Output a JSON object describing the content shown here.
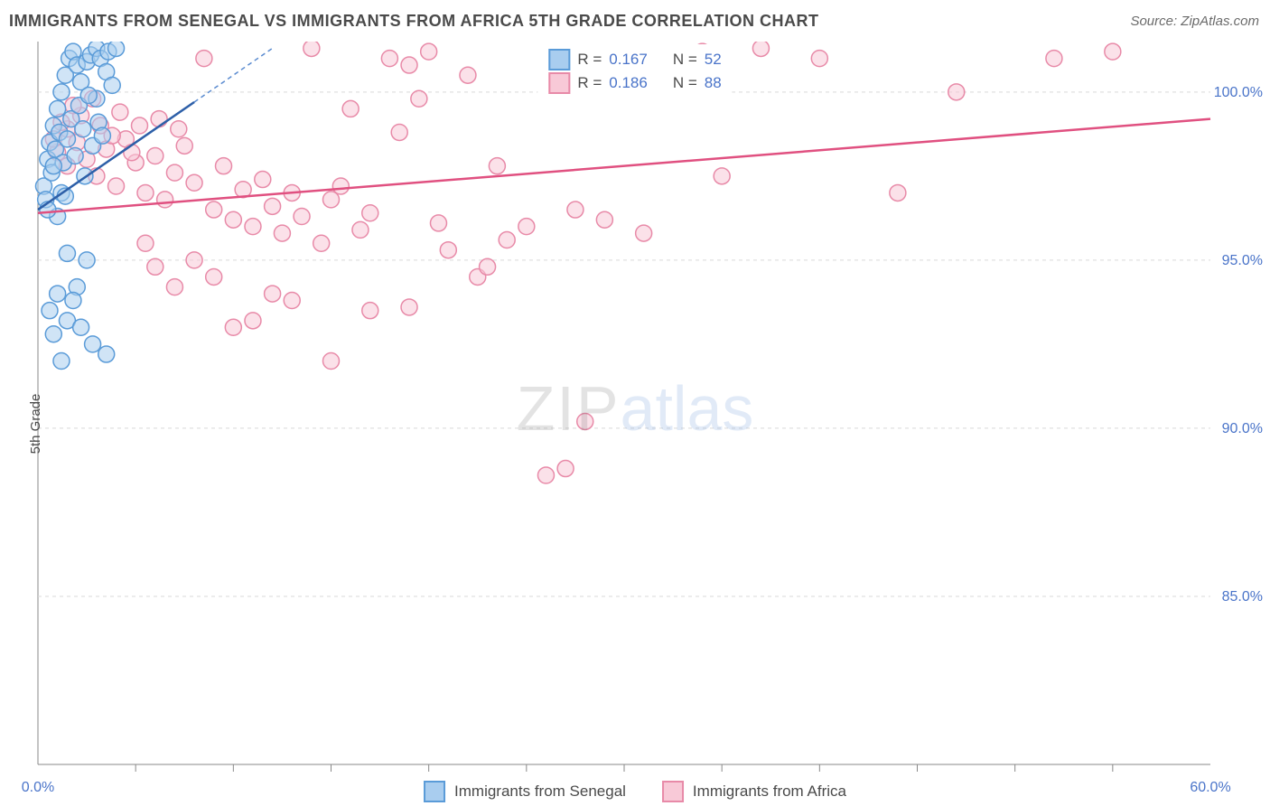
{
  "header": {
    "title": "IMMIGRANTS FROM SENEGAL VS IMMIGRANTS FROM AFRICA 5TH GRADE CORRELATION CHART",
    "source_label": "Source: ZipAtlas.com"
  },
  "chart": {
    "type": "scatter",
    "ylabel": "5th Grade",
    "background_color": "#ffffff",
    "grid_color": "#d9d9d9",
    "axis_color": "#888888",
    "tick_color": "#888888",
    "label_color": "#4a74c9",
    "xlim": [
      0,
      60
    ],
    "ylim": [
      80,
      101.5
    ],
    "xtick_major": [
      0,
      60
    ],
    "xtick_major_labels": [
      "0.0%",
      "60.0%"
    ],
    "xtick_minor": [
      5,
      10,
      15,
      20,
      25,
      30,
      35,
      40,
      45,
      50,
      55
    ],
    "ytick_major": [
      85,
      90,
      95,
      100
    ],
    "ytick_labels": [
      "85.0%",
      "90.0%",
      "95.0%",
      "100.0%"
    ],
    "marker_radius": 9,
    "marker_stroke_width": 1.5,
    "series": [
      {
        "name": "Immigrants from Senegal",
        "fill": "#a9cdef",
        "stroke": "#5a9bd8",
        "fill_opacity": 0.55,
        "trend": {
          "x1": 0,
          "y1": 96.5,
          "x2": 8,
          "y2": 99.7,
          "color": "#2d5fa8",
          "width": 2.5
        },
        "trend_dashed": {
          "x1": 8,
          "y1": 99.7,
          "x2": 12,
          "y2": 101.3,
          "color": "#5a8bd0",
          "width": 1.5,
          "dash": "5,4"
        },
        "R": "0.167",
        "N": "52",
        "points": [
          [
            0.3,
            97.2
          ],
          [
            0.5,
            98.0
          ],
          [
            0.6,
            98.5
          ],
          [
            0.8,
            99.0
          ],
          [
            1.0,
            99.5
          ],
          [
            1.2,
            100.0
          ],
          [
            1.4,
            100.5
          ],
          [
            1.6,
            101.0
          ],
          [
            1.8,
            101.2
          ],
          [
            2.0,
            100.8
          ],
          [
            2.2,
            100.3
          ],
          [
            2.5,
            100.9
          ],
          [
            2.7,
            101.1
          ],
          [
            3.0,
            101.3
          ],
          [
            3.0,
            99.8
          ],
          [
            3.2,
            101.0
          ],
          [
            3.5,
            100.6
          ],
          [
            3.6,
            101.2
          ],
          [
            3.8,
            100.2
          ],
          [
            4.0,
            101.3
          ],
          [
            0.4,
            96.8
          ],
          [
            0.7,
            97.6
          ],
          [
            0.9,
            98.3
          ],
          [
            1.1,
            98.8
          ],
          [
            1.3,
            97.9
          ],
          [
            1.5,
            98.6
          ],
          [
            1.7,
            99.2
          ],
          [
            1.9,
            98.1
          ],
          [
            2.1,
            99.6
          ],
          [
            2.3,
            98.9
          ],
          [
            2.4,
            97.5
          ],
          [
            2.6,
            99.9
          ],
          [
            2.8,
            98.4
          ],
          [
            3.1,
            99.1
          ],
          [
            3.3,
            98.7
          ],
          [
            1.0,
            96.3
          ],
          [
            1.2,
            97.0
          ],
          [
            0.5,
            96.5
          ],
          [
            0.8,
            97.8
          ],
          [
            1.4,
            96.9
          ],
          [
            1.5,
            95.2
          ],
          [
            2.5,
            95.0
          ],
          [
            1.0,
            94.0
          ],
          [
            2.0,
            94.2
          ],
          [
            1.5,
            93.2
          ],
          [
            2.2,
            93.0
          ],
          [
            2.8,
            92.5
          ],
          [
            3.5,
            92.2
          ],
          [
            0.6,
            93.5
          ],
          [
            1.8,
            93.8
          ],
          [
            0.8,
            92.8
          ],
          [
            1.2,
            92.0
          ]
        ]
      },
      {
        "name": "Immigrants from Africa",
        "fill": "#f8c9d7",
        "stroke": "#e88aa8",
        "fill_opacity": 0.55,
        "trend": {
          "x1": 0,
          "y1": 96.4,
          "x2": 60,
          "y2": 99.2,
          "color": "#e05080",
          "width": 2.5
        },
        "R": "0.186",
        "N": "88",
        "points": [
          [
            1.0,
            98.2
          ],
          [
            1.5,
            97.8
          ],
          [
            2.0,
            98.5
          ],
          [
            2.5,
            98.0
          ],
          [
            3.0,
            97.5
          ],
          [
            3.5,
            98.3
          ],
          [
            4.0,
            97.2
          ],
          [
            4.5,
            98.6
          ],
          [
            5.0,
            97.9
          ],
          [
            5.5,
            97.0
          ],
          [
            6.0,
            98.1
          ],
          [
            6.5,
            96.8
          ],
          [
            7.0,
            97.6
          ],
          [
            7.5,
            98.4
          ],
          [
            8.0,
            97.3
          ],
          [
            8.5,
            101.0
          ],
          [
            9.0,
            96.5
          ],
          [
            9.5,
            97.8
          ],
          [
            10.0,
            96.2
          ],
          [
            10.5,
            97.1
          ],
          [
            11.0,
            96.0
          ],
          [
            11.5,
            97.4
          ],
          [
            12.0,
            96.6
          ],
          [
            12.5,
            95.8
          ],
          [
            13.0,
            97.0
          ],
          [
            13.5,
            96.3
          ],
          [
            14.0,
            101.3
          ],
          [
            14.5,
            95.5
          ],
          [
            15.0,
            96.8
          ],
          [
            15.5,
            97.2
          ],
          [
            16.0,
            99.5
          ],
          [
            16.5,
            95.9
          ],
          [
            17.0,
            96.4
          ],
          [
            18.0,
            101.0
          ],
          [
            18.5,
            98.8
          ],
          [
            19.0,
            100.8
          ],
          [
            19.5,
            99.8
          ],
          [
            20.0,
            101.2
          ],
          [
            20.5,
            96.1
          ],
          [
            21.0,
            95.3
          ],
          [
            22.0,
            100.5
          ],
          [
            22.5,
            94.5
          ],
          [
            23.0,
            94.8
          ],
          [
            24.0,
            95.6
          ],
          [
            25.0,
            96.0
          ],
          [
            26.0,
            88.6
          ],
          [
            27.0,
            88.8
          ],
          [
            28.0,
            90.2
          ],
          [
            15.0,
            92.0
          ],
          [
            12.0,
            94.0
          ],
          [
            9.0,
            94.5
          ],
          [
            8.0,
            95.0
          ],
          [
            7.0,
            94.2
          ],
          [
            6.0,
            94.8
          ],
          [
            5.5,
            95.5
          ],
          [
            13.0,
            93.8
          ],
          [
            11.0,
            93.2
          ],
          [
            10.0,
            93.0
          ],
          [
            17.0,
            93.5
          ],
          [
            19.0,
            93.6
          ],
          [
            32.0,
            101.0
          ],
          [
            33.0,
            100.2
          ],
          [
            34.0,
            101.2
          ],
          [
            35.0,
            97.5
          ],
          [
            29.0,
            96.2
          ],
          [
            30.0,
            101.0
          ],
          [
            37.0,
            101.3
          ],
          [
            40.0,
            101.0
          ],
          [
            55.0,
            101.2
          ],
          [
            52.0,
            101.0
          ],
          [
            47.0,
            100.0
          ],
          [
            44.0,
            97.0
          ],
          [
            31.0,
            95.8
          ],
          [
            27.5,
            96.5
          ],
          [
            23.5,
            97.8
          ],
          [
            1.5,
            98.9
          ],
          [
            2.2,
            99.3
          ],
          [
            3.2,
            99.0
          ],
          [
            1.8,
            99.6
          ],
          [
            2.8,
            99.8
          ],
          [
            0.8,
            98.6
          ],
          [
            1.2,
            99.1
          ],
          [
            4.2,
            99.4
          ],
          [
            5.2,
            99.0
          ],
          [
            3.8,
            98.7
          ],
          [
            4.8,
            98.2
          ],
          [
            6.2,
            99.2
          ],
          [
            7.2,
            98.9
          ]
        ]
      }
    ],
    "watermark": {
      "left": "ZIP",
      "right": "atlas"
    },
    "legend_bottom": [
      {
        "label": "Immigrants from Senegal",
        "fill": "#a9cdef",
        "stroke": "#5a9bd8"
      },
      {
        "label": "Immigrants from Africa",
        "fill": "#f8c9d7",
        "stroke": "#e88aa8"
      }
    ],
    "legend_top_prefix_R": "R =",
    "legend_top_prefix_N": "N ="
  }
}
